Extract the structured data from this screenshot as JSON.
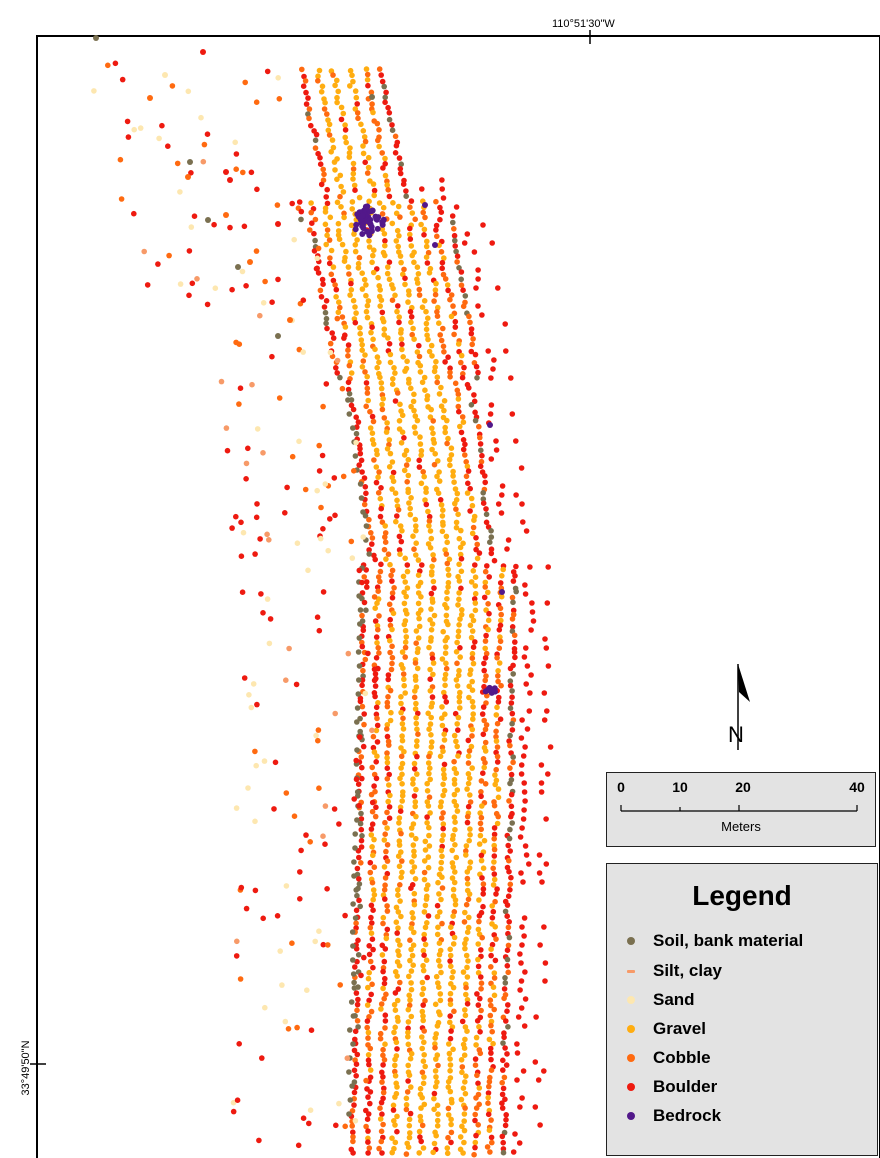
{
  "map": {
    "longitude_label": "110°51'30\"W",
    "latitude_label": "33°49'50\"N"
  },
  "north_arrow": {
    "letter": "N"
  },
  "scale_bar": {
    "ticks": [
      "0",
      "10",
      "20",
      "40"
    ],
    "tick_values": [
      0,
      10,
      20,
      40
    ],
    "unit": "Meters"
  },
  "legend": {
    "title": "Legend",
    "items": [
      {
        "label": "Soil, bank material",
        "color": "#7a7050",
        "icon": "dot-icon"
      },
      {
        "label": "Silt, clay",
        "color": "#f79a68",
        "icon": "dash-icon"
      },
      {
        "label": "Sand",
        "color": "#fde7b0",
        "icon": "dot-icon"
      },
      {
        "label": "Gravel",
        "color": "#ffad10",
        "icon": "dot-icon"
      },
      {
        "label": "Cobble",
        "color": "#ff6a10",
        "icon": "dot-icon"
      },
      {
        "label": "Boulder",
        "color": "#ee1a10",
        "icon": "dot-icon"
      },
      {
        "label": "Bedrock",
        "color": "#52188a",
        "icon": "dot-icon"
      }
    ]
  }
}
